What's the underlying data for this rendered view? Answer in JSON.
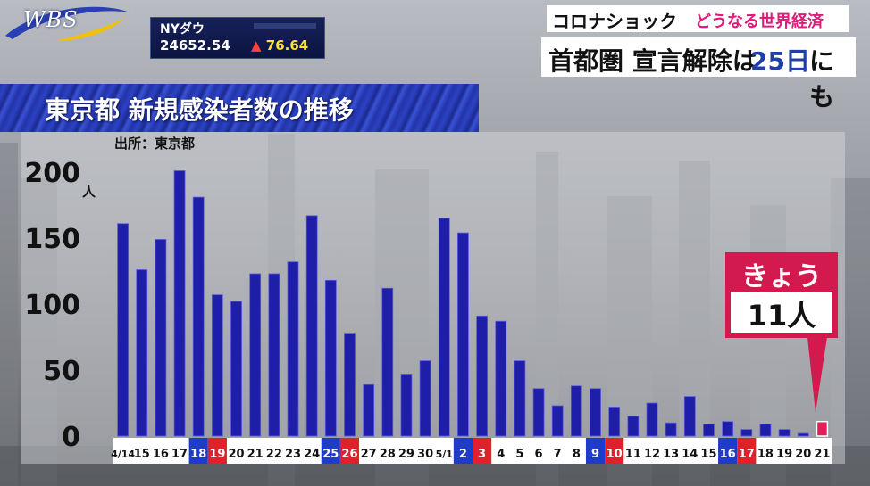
{
  "broadcast": {
    "logo": "WBS",
    "ticker": {
      "name": "NYダウ",
      "value": "24652.54",
      "change_symbol": "▲",
      "change": "76.64"
    },
    "banner_top": {
      "topic": "コロナショック",
      "subtopic": "どうなる世界経済"
    },
    "banner_bottom": {
      "text_a": "首都圏 宣言解除は",
      "text_b": "25日",
      "text_c": "にも"
    }
  },
  "chart_title": "東京都 新規感染者数の推移",
  "source": "出所：東京都",
  "y_unit": "人",
  "callout": {
    "label": "きょう",
    "value": "11人"
  },
  "colors": {
    "bar": "#1e1ea8",
    "highlight_bar": "#e0205a",
    "saturday": "#1f3cc8",
    "sunday": "#e0202a"
  },
  "chart_data": {
    "type": "bar",
    "categories": [
      "4/14",
      "15",
      "16",
      "17",
      "18",
      "19",
      "20",
      "21",
      "22",
      "23",
      "24",
      "25",
      "26",
      "27",
      "28",
      "29",
      "30",
      "5/1",
      "2",
      "3",
      "4",
      "5",
      "6",
      "7",
      "8",
      "9",
      "10",
      "11",
      "12",
      "13",
      "14",
      "15",
      "16",
      "17",
      "18",
      "19",
      "20",
      "21"
    ],
    "values": [
      161,
      126,
      149,
      201,
      181,
      107,
      102,
      123,
      123,
      132,
      167,
      118,
      78,
      39,
      112,
      47,
      57,
      165,
      154,
      91,
      87,
      57,
      36,
      23,
      38,
      36,
      22,
      15,
      25,
      10,
      30,
      9,
      11,
      5,
      9,
      5,
      2,
      11
    ],
    "day_type": [
      "",
      "",
      "",
      "",
      "sat",
      "sun",
      "",
      "",
      "",
      "",
      "",
      "sat",
      "sun",
      "",
      "",
      "",
      "",
      "",
      "sat",
      "sun",
      "",
      "",
      "",
      "",
      "",
      "sat",
      "sun",
      "",
      "",
      "",
      "",
      "",
      "sat",
      "sun",
      "",
      "",
      "",
      ""
    ],
    "highlight_index": 37,
    "yticks": [
      0,
      50,
      100,
      150,
      200
    ],
    "ylim": [
      0,
      200
    ]
  }
}
